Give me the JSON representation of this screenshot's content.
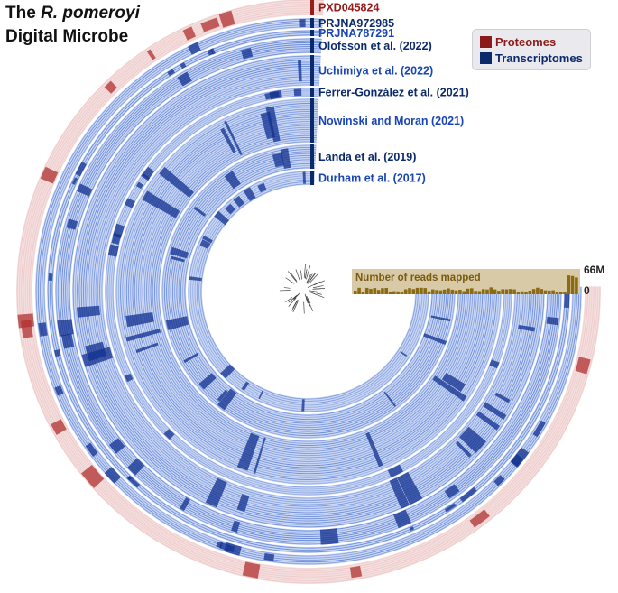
{
  "title": {
    "prefix": "The ",
    "species": "R. pomeroyi",
    "line2": "Digital Microbe"
  },
  "legend": [
    {
      "label": "Proteomes",
      "color": "#8b1a1a"
    },
    {
      "label": "Transcriptomes",
      "color": "#0b2a6b"
    }
  ],
  "datasets": [
    {
      "label": "PXD045824",
      "type": "proteome",
      "label_color": "#9b1b1b"
    },
    {
      "label": "PRJNA972985",
      "type": "transcriptome",
      "label_color": "#0b2a6b"
    },
    {
      "label": "PRJNA787291",
      "type": "transcriptome",
      "label_color": "#1a45b5"
    },
    {
      "label": "Olofsson et al. (2022)",
      "type": "transcriptome",
      "label_color": "#0b2a6b"
    },
    {
      "label": "Uchimiya et al. (2022)",
      "type": "transcriptome",
      "label_color": "#1a45b5"
    },
    {
      "label": "Ferrer-González et al. (2021)",
      "type": "transcriptome",
      "label_color": "#0b2a6b"
    },
    {
      "label": "Nowinski and Moran (2021)",
      "type": "transcriptome",
      "label_color": "#1a45b5"
    },
    {
      "label": "Landa et al. (2019)",
      "type": "transcriptome",
      "label_color": "#0b2a6b"
    },
    {
      "label": "Durham et al. (2017)",
      "type": "transcriptome",
      "label_color": "#1a45b5"
    }
  ],
  "reads_panel": {
    "title": "Number of reads mapped",
    "max_label": "66M",
    "min_label": "0",
    "bar_color": "#8a6b14",
    "background": "#d8caa6"
  }
}
